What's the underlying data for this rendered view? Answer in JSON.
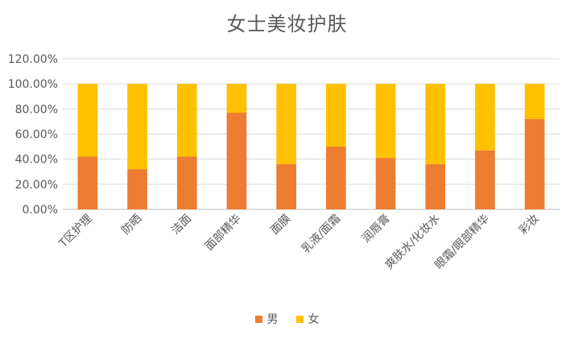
{
  "chart_data": {
    "type": "bar",
    "stacked": true,
    "title": "女士美妆护肤",
    "categories": [
      "T区护理",
      "防晒",
      "洁面",
      "面部精华",
      "面膜",
      "乳液/面霜",
      "润唇膏",
      "爽肤水/化妆水",
      "眼霜/眼部精华",
      "彩妆"
    ],
    "series": [
      {
        "name": "男",
        "color": "#ED7D31",
        "values": [
          0.42,
          0.32,
          0.42,
          0.77,
          0.36,
          0.5,
          0.41,
          0.36,
          0.47,
          0.72
        ]
      },
      {
        "name": "女",
        "color": "#FFC000",
        "values": [
          0.58,
          0.68,
          0.58,
          0.23,
          0.64,
          0.5,
          0.59,
          0.64,
          0.53,
          0.28
        ]
      }
    ],
    "ylim": [
      0,
      1.2
    ],
    "yticks": [
      "0.00%",
      "20.00%",
      "40.00%",
      "60.00%",
      "80.00%",
      "100.00%",
      "120.00%"
    ],
    "grid": true,
    "legend_position": "bottom"
  }
}
